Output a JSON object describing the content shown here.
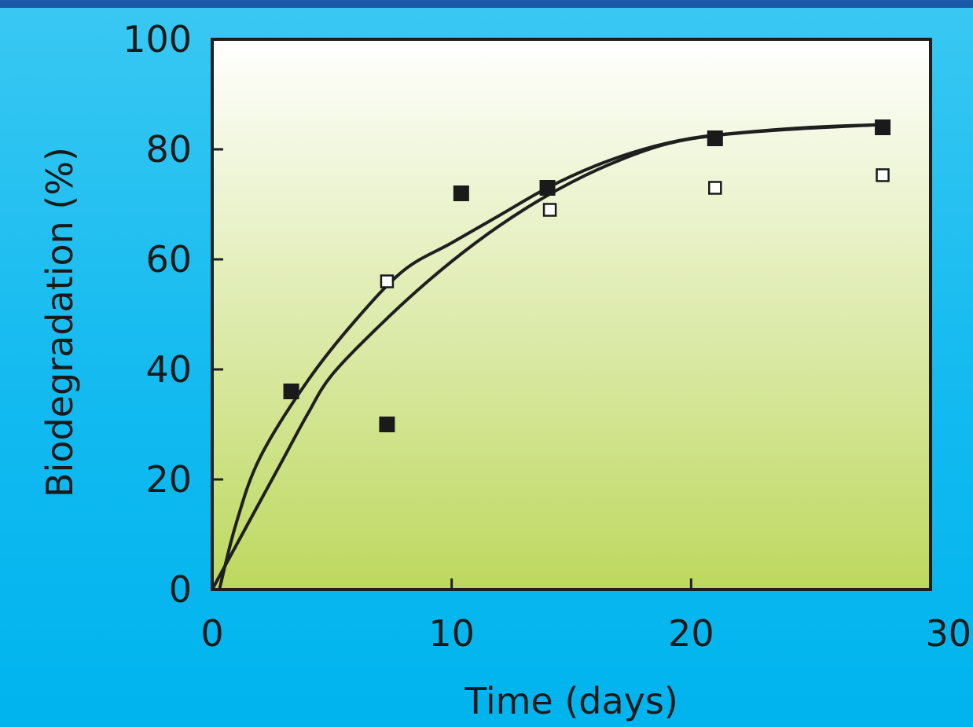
{
  "chart_data": {
    "type": "scatter",
    "xlabel": "Time (days)",
    "ylabel": "Biodegradation (%)",
    "xlim": [
      0,
      30
    ],
    "ylim": [
      0,
      100
    ],
    "x_ticks": [
      "0",
      "10",
      "20",
      "30"
    ],
    "y_ticks": [
      "0",
      "20",
      "40",
      "60",
      "80",
      "100"
    ],
    "grid": false,
    "series": [
      {
        "marker": "filled-square",
        "points": [
          [
            3.3,
            36
          ],
          [
            7.3,
            30
          ],
          [
            10.4,
            72
          ],
          [
            14,
            73
          ],
          [
            21,
            82
          ],
          [
            28,
            84
          ]
        ],
        "fit_curve": [
          [
            0.3,
            0
          ],
          [
            1,
            12
          ],
          [
            2,
            24
          ],
          [
            4,
            38
          ],
          [
            6,
            49
          ],
          [
            8,
            58
          ],
          [
            10,
            63
          ],
          [
            12,
            68
          ],
          [
            14,
            73
          ],
          [
            16,
            77
          ],
          [
            18,
            80
          ],
          [
            20,
            82
          ],
          [
            22,
            83
          ],
          [
            25,
            84
          ],
          [
            28,
            84.5
          ]
        ]
      },
      {
        "marker": "open-square",
        "points": [
          [
            7.3,
            56
          ],
          [
            14.1,
            69
          ],
          [
            21,
            73
          ],
          [
            28,
            75.3
          ]
        ],
        "fit_curve": [
          [
            0,
            0
          ],
          [
            1,
            8
          ],
          [
            2,
            16
          ],
          [
            3,
            24
          ],
          [
            4,
            32
          ],
          [
            5,
            39
          ],
          [
            7,
            48
          ],
          [
            9,
            56
          ],
          [
            11,
            63
          ],
          [
            13,
            69
          ],
          [
            15,
            74
          ],
          [
            17,
            78
          ],
          [
            19,
            81
          ],
          [
            21,
            82.5
          ],
          [
            24,
            83.6
          ],
          [
            28,
            84.5
          ]
        ]
      }
    ]
  },
  "colors": {
    "plot_top": "#ffffff",
    "plot_bottom": "#bdd85e",
    "frame": "#1f1f1f",
    "marker": "#1a1a1a"
  }
}
